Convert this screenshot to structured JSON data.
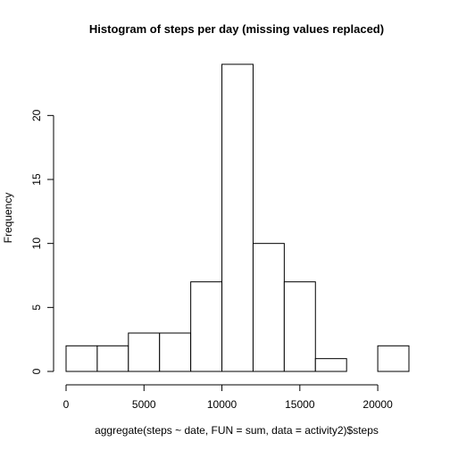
{
  "chart_data": {
    "type": "bar",
    "title": "Histogram of steps per day (missing values replaced)",
    "xlabel": "aggregate(steps ~ date, FUN = sum, data = activity2)$steps",
    "ylabel": "Frequency",
    "bins": [
      {
        "x0": 0,
        "x1": 2000,
        "count": 2
      },
      {
        "x0": 2000,
        "x1": 4000,
        "count": 2
      },
      {
        "x0": 4000,
        "x1": 6000,
        "count": 3
      },
      {
        "x0": 6000,
        "x1": 8000,
        "count": 3
      },
      {
        "x0": 8000,
        "x1": 10000,
        "count": 7
      },
      {
        "x0": 10000,
        "x1": 12000,
        "count": 24
      },
      {
        "x0": 12000,
        "x1": 14000,
        "count": 10
      },
      {
        "x0": 14000,
        "x1": 16000,
        "count": 7
      },
      {
        "x0": 16000,
        "x1": 18000,
        "count": 1
      },
      {
        "x0": 18000,
        "x1": 20000,
        "count": 0
      },
      {
        "x0": 20000,
        "x1": 22000,
        "count": 2
      }
    ],
    "xlim": [
      0,
      22000
    ],
    "ylim": [
      0,
      24
    ],
    "x_ticks": [
      0,
      5000,
      10000,
      15000,
      20000
    ],
    "y_ticks": [
      0,
      5,
      10,
      15,
      20
    ],
    "grid": false
  }
}
